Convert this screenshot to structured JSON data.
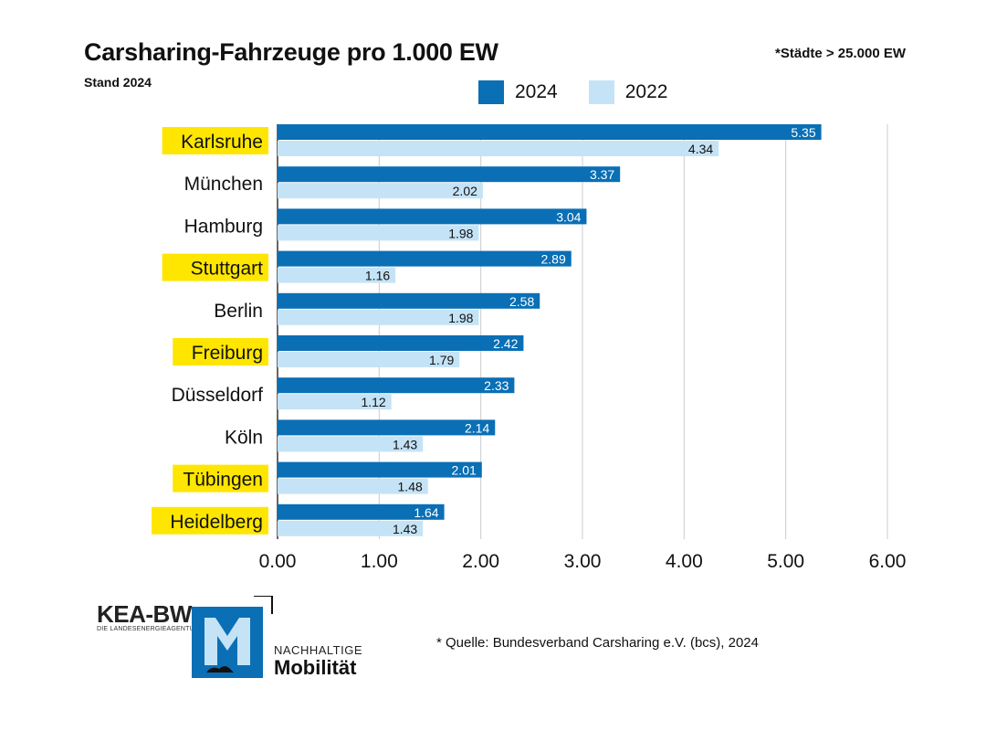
{
  "header": {
    "title": "Carsharing-Fahrzeuge pro 1.000 EW",
    "subtitle": "Stand 2024",
    "note": "*Städte > 25.000 EW"
  },
  "colors": {
    "series_2024": "#0a6fb5",
    "series_2022": "#c5e3f6",
    "highlight": "#ffe600",
    "grid": "#cccccc"
  },
  "chart_data": {
    "type": "bar",
    "orientation": "horizontal",
    "title": "Carsharing-Fahrzeuge pro 1.000 EW",
    "subtitle": "Stand 2024",
    "categories": [
      "Karlsruhe",
      "München",
      "Hamburg",
      "Stuttgart",
      "Berlin",
      "Freiburg",
      "Düsseldorf",
      "Köln",
      "Tübingen",
      "Heidelberg"
    ],
    "highlighted": [
      "Karlsruhe",
      "Stuttgart",
      "Freiburg",
      "Tübingen",
      "Heidelberg"
    ],
    "series": [
      {
        "name": "2024",
        "values": [
          5.35,
          3.37,
          3.04,
          2.89,
          2.58,
          2.42,
          2.33,
          2.14,
          2.01,
          1.64
        ]
      },
      {
        "name": "2022",
        "values": [
          4.34,
          2.02,
          1.98,
          1.16,
          1.98,
          1.79,
          1.12,
          1.43,
          1.48,
          1.43
        ]
      }
    ],
    "xlim": [
      0,
      6
    ],
    "xticks": [
      "0.00",
      "1.00",
      "2.00",
      "3.00",
      "4.00",
      "5.00",
      "6.00"
    ],
    "grid": true,
    "legend": "top"
  },
  "footer": {
    "source": "* Quelle: Bundesverband Carsharing e.V. (bcs), 2024",
    "kea_logo": "KEA-BW",
    "kea_tagline": "DIE LANDESENERGIEAGENTUR",
    "nm_small": "NACHHALTIGE",
    "nm_big": "Mobilität"
  }
}
